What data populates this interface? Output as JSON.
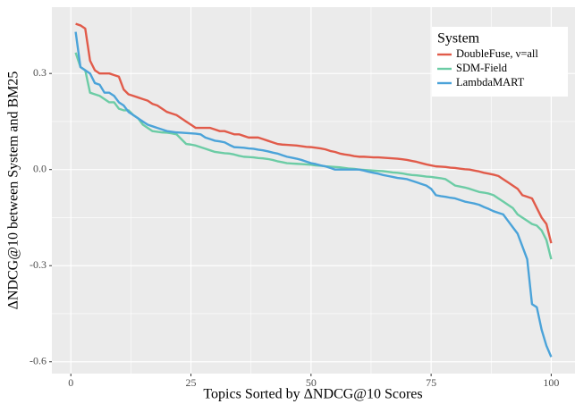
{
  "chart_data": {
    "type": "line",
    "x_label": "Topics Sorted by ΔNDCG@10 Scores",
    "y_label": "ΔNDCG@10 between System and BM25",
    "legend_title": "System",
    "legend": "top-right",
    "grid": true,
    "xlim": [
      -3.95,
      104.95
    ],
    "ylim": [
      -0.637,
      0.507
    ],
    "xticks": [
      0,
      25,
      50,
      75,
      100
    ],
    "yticks": [
      -0.6,
      -0.3,
      {
        "value": 0,
        "label": "0.0"
      },
      0.3
    ],
    "x": [
      1,
      2,
      3,
      4,
      5,
      6,
      7,
      8,
      9,
      10,
      11,
      12,
      13,
      14,
      15,
      16,
      17,
      18,
      19,
      20,
      21,
      22,
      23,
      24,
      25,
      26,
      27,
      28,
      29,
      30,
      31,
      32,
      33,
      34,
      35,
      36,
      37,
      38,
      39,
      40,
      41,
      42,
      43,
      44,
      45,
      46,
      47,
      48,
      49,
      50,
      51,
      52,
      53,
      54,
      55,
      56,
      57,
      58,
      59,
      60,
      61,
      62,
      63,
      64,
      65,
      66,
      67,
      68,
      69,
      70,
      71,
      72,
      73,
      74,
      75,
      76,
      77,
      78,
      79,
      80,
      81,
      82,
      83,
      84,
      85,
      86,
      87,
      88,
      89,
      90,
      91,
      92,
      93,
      94,
      95,
      96,
      97,
      98,
      99,
      100
    ],
    "series": [
      {
        "name": "DoubleFuse, ν=all",
        "color": "#e15b4a",
        "values": [
          0.455,
          0.45,
          0.44,
          0.34,
          0.31,
          0.3,
          0.3,
          0.3,
          0.295,
          0.29,
          0.25,
          0.235,
          0.23,
          0.225,
          0.22,
          0.215,
          0.205,
          0.2,
          0.19,
          0.18,
          0.175,
          0.17,
          0.16,
          0.15,
          0.14,
          0.13,
          0.13,
          0.13,
          0.13,
          0.125,
          0.12,
          0.12,
          0.115,
          0.11,
          0.11,
          0.105,
          0.1,
          0.1,
          0.1,
          0.095,
          0.09,
          0.085,
          0.08,
          0.078,
          0.077,
          0.076,
          0.075,
          0.073,
          0.071,
          0.07,
          0.068,
          0.066,
          0.063,
          0.058,
          0.055,
          0.05,
          0.047,
          0.045,
          0.042,
          0.04,
          0.04,
          0.039,
          0.038,
          0.038,
          0.037,
          0.036,
          0.035,
          0.034,
          0.032,
          0.03,
          0.027,
          0.024,
          0.02,
          0.016,
          0.013,
          0.01,
          0.009,
          0.008,
          0.006,
          0.005,
          0.003,
          0.001,
          0.0,
          -0.003,
          -0.006,
          -0.01,
          -0.013,
          -0.016,
          -0.02,
          -0.03,
          -0.04,
          -0.05,
          -0.06,
          -0.08,
          -0.085,
          -0.09,
          -0.12,
          -0.15,
          -0.17,
          -0.23
        ]
      },
      {
        "name": "SDM-Field",
        "color": "#6ccca5",
        "values": [
          0.365,
          0.32,
          0.31,
          0.24,
          0.235,
          0.23,
          0.22,
          0.21,
          0.21,
          0.19,
          0.185,
          0.185,
          0.17,
          0.16,
          0.14,
          0.13,
          0.12,
          0.118,
          0.116,
          0.115,
          0.113,
          0.11,
          0.095,
          0.08,
          0.078,
          0.075,
          0.07,
          0.065,
          0.06,
          0.055,
          0.053,
          0.051,
          0.05,
          0.047,
          0.043,
          0.04,
          0.039,
          0.038,
          0.036,
          0.035,
          0.033,
          0.03,
          0.026,
          0.023,
          0.02,
          0.019,
          0.018,
          0.017,
          0.016,
          0.015,
          0.013,
          0.012,
          0.01,
          0.009,
          0.008,
          0.007,
          0.005,
          0.003,
          0.002,
          0.0,
          -0.001,
          -0.002,
          -0.003,
          -0.004,
          -0.005,
          -0.007,
          -0.009,
          -0.01,
          -0.012,
          -0.015,
          -0.017,
          -0.018,
          -0.02,
          -0.022,
          -0.023,
          -0.025,
          -0.027,
          -0.03,
          -0.04,
          -0.05,
          -0.053,
          -0.056,
          -0.06,
          -0.065,
          -0.07,
          -0.072,
          -0.075,
          -0.08,
          -0.09,
          -0.1,
          -0.11,
          -0.12,
          -0.14,
          -0.15,
          -0.16,
          -0.17,
          -0.175,
          -0.19,
          -0.22,
          -0.28
        ]
      },
      {
        "name": "LambdaMART",
        "color": "#4ba3d9",
        "values": [
          0.43,
          0.32,
          0.31,
          0.3,
          0.27,
          0.265,
          0.24,
          0.24,
          0.23,
          0.21,
          0.2,
          0.18,
          0.17,
          0.16,
          0.15,
          0.14,
          0.135,
          0.13,
          0.125,
          0.12,
          0.118,
          0.116,
          0.115,
          0.114,
          0.113,
          0.112,
          0.11,
          0.1,
          0.095,
          0.09,
          0.088,
          0.085,
          0.077,
          0.07,
          0.069,
          0.068,
          0.066,
          0.065,
          0.062,
          0.06,
          0.057,
          0.053,
          0.05,
          0.045,
          0.04,
          0.037,
          0.034,
          0.03,
          0.025,
          0.02,
          0.017,
          0.013,
          0.01,
          0.005,
          0.0,
          0.0,
          0.0,
          0.0,
          0.0,
          0.0,
          -0.003,
          -0.007,
          -0.01,
          -0.013,
          -0.017,
          -0.02,
          -0.023,
          -0.026,
          -0.028,
          -0.03,
          -0.035,
          -0.04,
          -0.045,
          -0.05,
          -0.06,
          -0.08,
          -0.083,
          -0.085,
          -0.088,
          -0.09,
          -0.095,
          -0.1,
          -0.103,
          -0.106,
          -0.11,
          -0.117,
          -0.123,
          -0.13,
          -0.135,
          -0.14,
          -0.16,
          -0.18,
          -0.2,
          -0.24,
          -0.28,
          -0.42,
          -0.43,
          -0.5,
          -0.55,
          -0.585
        ]
      }
    ]
  }
}
